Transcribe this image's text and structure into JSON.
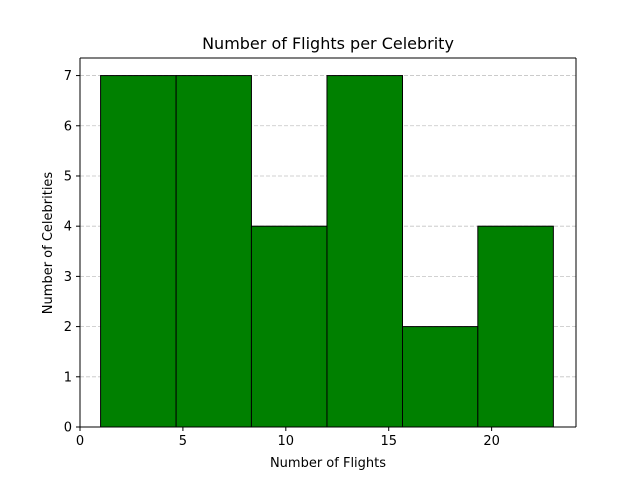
{
  "chart_data": {
    "type": "bar",
    "title": "Number of Flights per Celebrity",
    "xlabel": "Number of Flights",
    "ylabel": "Number of Celebrities",
    "bins": [
      {
        "start": 1.0,
        "end": 4.67,
        "count": 7
      },
      {
        "start": 4.67,
        "end": 8.33,
        "count": 7
      },
      {
        "start": 8.33,
        "end": 12.0,
        "count": 4
      },
      {
        "start": 12.0,
        "end": 15.67,
        "count": 7
      },
      {
        "start": 15.67,
        "end": 19.33,
        "count": 2
      },
      {
        "start": 19.33,
        "end": 23.0,
        "count": 4
      }
    ],
    "xlim": [
      0,
      24.1
    ],
    "ylim": [
      0,
      7.35
    ],
    "xticks": [
      0,
      5,
      10,
      15,
      20
    ],
    "xtick_labels": [
      "0",
      "5",
      "10",
      "15",
      "20"
    ],
    "yticks": [
      0,
      1,
      2,
      3,
      4,
      5,
      6,
      7
    ],
    "ytick_labels": [
      "0",
      "1",
      "2",
      "3",
      "4",
      "5",
      "6",
      "7"
    ],
    "grid": {
      "y": true,
      "x": false,
      "style": "dashed"
    },
    "colors": {
      "bar_fill": "#008000",
      "bar_edge": "#000000",
      "grid": "#c4c4c4",
      "axis": "#000000",
      "text": "#000000"
    }
  }
}
